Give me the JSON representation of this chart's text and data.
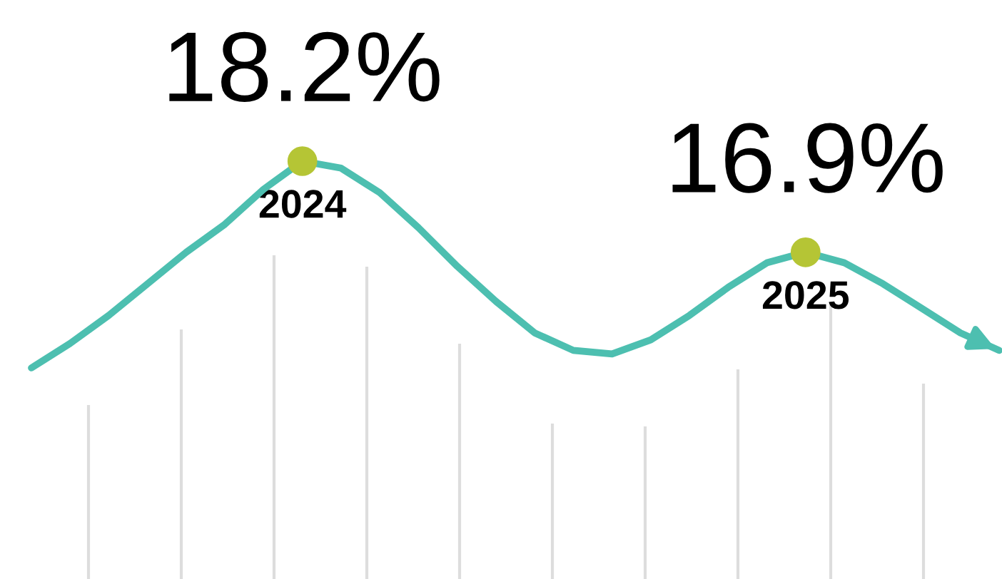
{
  "chart_data": {
    "type": "line",
    "categories": [
      null,
      null,
      null,
      null,
      null,
      null,
      null,
      "2024",
      null,
      null,
      null,
      null,
      null,
      null,
      null,
      null,
      null,
      null,
      null,
      null,
      "2025",
      null,
      null,
      null,
      null,
      null
    ],
    "series": [
      {
        "color": "#4dbfb0",
        "colors": [
          null,
          null,
          null,
          null,
          null,
          null,
          null,
          "#b5c535",
          null,
          null,
          null,
          null,
          null,
          null,
          null,
          null,
          null,
          null,
          null,
          null,
          "#b5c535",
          null,
          null,
          null,
          null,
          null
        ],
        "values": [
          15.25,
          15.6,
          16.0,
          16.45,
          16.9,
          17.3,
          17.8,
          18.2,
          18.1,
          17.75,
          17.25,
          16.7,
          16.2,
          15.75,
          15.5,
          15.45,
          15.65,
          16.0,
          16.4,
          16.75,
          16.9,
          16.75,
          16.45,
          16.1,
          15.75,
          15.5
        ],
        "value_labels": [
          null,
          null,
          null,
          null,
          null,
          null,
          null,
          "18.2%",
          null,
          null,
          null,
          null,
          null,
          null,
          null,
          null,
          null,
          null,
          null,
          null,
          "16.9%",
          null,
          null,
          null,
          null,
          null
        ]
      }
    ],
    "grid": false,
    "legend": false,
    "tick_labels": false
  }
}
